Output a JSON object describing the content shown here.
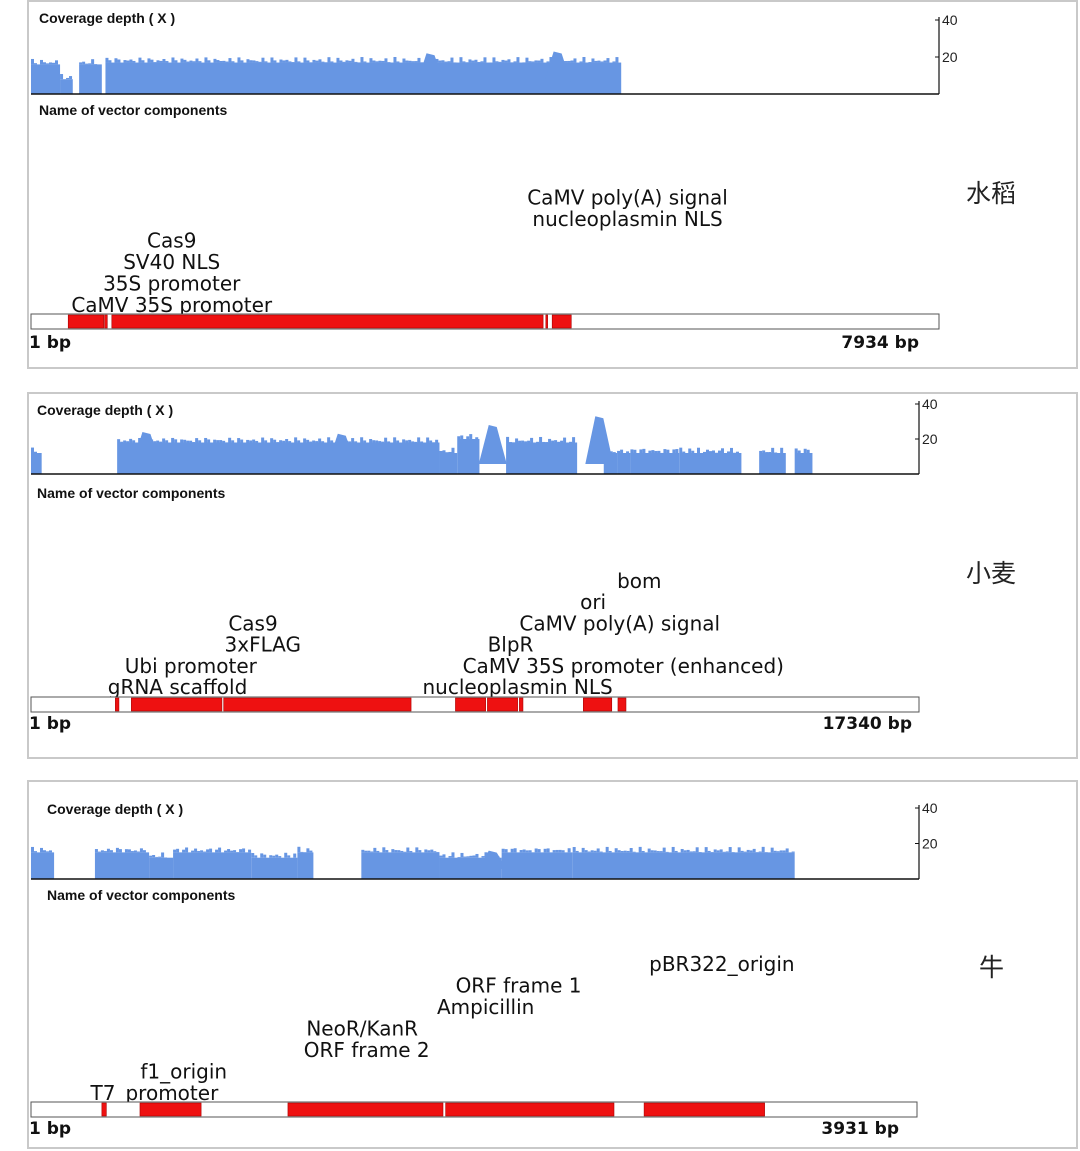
{
  "chart_data": [
    {
      "type": "bar",
      "species_label": "水稻",
      "coverage_label": "Coverage depth ( X )",
      "components_label": "Name of vector components",
      "yticks": [
        20,
        40
      ],
      "ylim": [
        0,
        40
      ],
      "x_start_label": "1 bp",
      "x_end_label": "7934 bp",
      "length_bp": 7934,
      "coverage": [
        [
          0.0,
          0.032,
          16
        ],
        [
          0.032,
          0.046,
          8
        ],
        [
          0.046,
          0.053,
          0
        ],
        [
          0.053,
          0.078,
          16
        ],
        [
          0.078,
          0.082,
          0
        ],
        [
          0.082,
          0.65,
          17
        ]
      ],
      "coverage_peaks": [
        [
          0.44,
          22
        ],
        [
          0.58,
          23
        ]
      ],
      "features": [
        {
          "start": 0.041,
          "end": 0.08
        },
        {
          "start": 0.081,
          "end": 0.084
        },
        {
          "start": 0.089,
          "end": 0.564
        },
        {
          "start": 0.567,
          "end": 0.569
        },
        {
          "start": 0.574,
          "end": 0.595
        }
      ],
      "labels": [
        {
          "text": "Cas9",
          "x": 0.155,
          "row": 3
        },
        {
          "text": "SV40 NLS",
          "x": 0.155,
          "row": 2
        },
        {
          "text": "35S promoter",
          "x": 0.155,
          "row": 1
        },
        {
          "text": "CaMV 35S promoter",
          "x": 0.155,
          "row": 0
        },
        {
          "text": "CaMV poly(A) signal",
          "x": 0.657,
          "row": 5
        },
        {
          "text": "nucleoplasmin NLS",
          "x": 0.657,
          "row": 4
        }
      ]
    },
    {
      "type": "bar",
      "species_label": "小麦",
      "coverage_label": "Coverage depth ( X )",
      "components_label": "Name of vector components",
      "yticks": [
        20,
        40
      ],
      "ylim": [
        0,
        40
      ],
      "x_start_label": "1 bp",
      "x_end_label": "17340 bp",
      "length_bp": 17340,
      "coverage": [
        [
          0.0,
          0.012,
          12
        ],
        [
          0.012,
          0.097,
          0
        ],
        [
          0.097,
          0.46,
          18
        ],
        [
          0.46,
          0.48,
          12
        ],
        [
          0.48,
          0.505,
          20
        ],
        [
          0.505,
          0.535,
          0
        ],
        [
          0.535,
          0.615,
          18
        ],
        [
          0.615,
          0.645,
          0
        ],
        [
          0.645,
          0.66,
          12
        ],
        [
          0.66,
          0.675,
          12
        ],
        [
          0.675,
          0.73,
          12
        ],
        [
          0.73,
          0.75,
          12
        ],
        [
          0.75,
          0.8,
          12
        ],
        [
          0.8,
          0.82,
          0
        ],
        [
          0.82,
          0.85,
          12
        ],
        [
          0.85,
          0.86,
          0
        ],
        [
          0.86,
          0.88,
          12
        ]
      ],
      "coverage_peaks": [
        [
          0.13,
          24
        ],
        [
          0.35,
          23
        ],
        [
          0.52,
          28
        ],
        [
          0.64,
          33
        ]
      ],
      "features": [
        {
          "start": 0.095,
          "end": 0.099
        },
        {
          "start": 0.113,
          "end": 0.215
        },
        {
          "start": 0.217,
          "end": 0.428
        },
        {
          "start": 0.478,
          "end": 0.512
        },
        {
          "start": 0.514,
          "end": 0.548
        },
        {
          "start": 0.55,
          "end": 0.554
        },
        {
          "start": 0.622,
          "end": 0.654
        },
        {
          "start": 0.661,
          "end": 0.67
        }
      ],
      "labels": [
        {
          "text": "Cas9",
          "x": 0.25,
          "row": 3
        },
        {
          "text": "3xFLAG",
          "x": 0.261,
          "row": 2
        },
        {
          "text": "Ubi promoter",
          "x": 0.18,
          "row": 1
        },
        {
          "text": "gRNA scaffold",
          "x": 0.165,
          "row": 0
        },
        {
          "text": "bom",
          "x": 0.685,
          "row": 5
        },
        {
          "text": "ori",
          "x": 0.633,
          "row": 4
        },
        {
          "text": "CaMV poly(A) signal",
          "x": 0.663,
          "row": 3
        },
        {
          "text": "BlpR",
          "x": 0.54,
          "row": 2
        },
        {
          "text": "CaMV 35S promoter (enhanced)",
          "x": 0.667,
          "row": 1
        },
        {
          "text": "nucleoplasmin NLS",
          "x": 0.548,
          "row": 0
        }
      ]
    },
    {
      "type": "bar",
      "species_label": "牛",
      "coverage_label": "Coverage depth ( X )",
      "components_label": "Name of vector components",
      "yticks": [
        20,
        40
      ],
      "ylim": [
        0,
        40
      ],
      "x_start_label": "1 bp",
      "x_end_label": "3931 bp",
      "length_bp": 3931,
      "coverage": [
        [
          0.0,
          0.026,
          15
        ],
        [
          0.026,
          0.072,
          0
        ],
        [
          0.072,
          0.133,
          15
        ],
        [
          0.133,
          0.16,
          12
        ],
        [
          0.16,
          0.248,
          15
        ],
        [
          0.248,
          0.3,
          12
        ],
        [
          0.3,
          0.318,
          15
        ],
        [
          0.318,
          0.372,
          0
        ],
        [
          0.372,
          0.46,
          15
        ],
        [
          0.46,
          0.53,
          12
        ],
        [
          0.53,
          0.61,
          15
        ],
        [
          0.61,
          0.86,
          15
        ]
      ],
      "coverage_peaks": [
        [
          0.21,
          15
        ],
        [
          0.52,
          16
        ]
      ],
      "features": [
        {
          "start": 0.08,
          "end": 0.085
        },
        {
          "start": 0.123,
          "end": 0.192
        },
        {
          "start": 0.29,
          "end": 0.465
        },
        {
          "start": 0.468,
          "end": 0.658
        },
        {
          "start": 0.692,
          "end": 0.828
        }
      ],
      "labels": [
        {
          "text": "f1_origin",
          "x": 0.172,
          "row": 1
        },
        {
          "text": "T7_promoter",
          "x": 0.139,
          "row": 0
        },
        {
          "text": "NeoR/KanR",
          "x": 0.373,
          "row": 3
        },
        {
          "text": "ORF frame 2",
          "x": 0.378,
          "row": 2
        },
        {
          "text": "ORF frame 1",
          "x": 0.549,
          "row": 5
        },
        {
          "text": "Ampicillin",
          "x": 0.512,
          "row": 4
        },
        {
          "text": "pBR322_origin",
          "x": 0.778,
          "row": 6
        }
      ]
    }
  ],
  "colors": {
    "coverage": "#6796e3",
    "feature": "#ee1111",
    "track_fill": "#ffffff",
    "axis": "#222222"
  }
}
